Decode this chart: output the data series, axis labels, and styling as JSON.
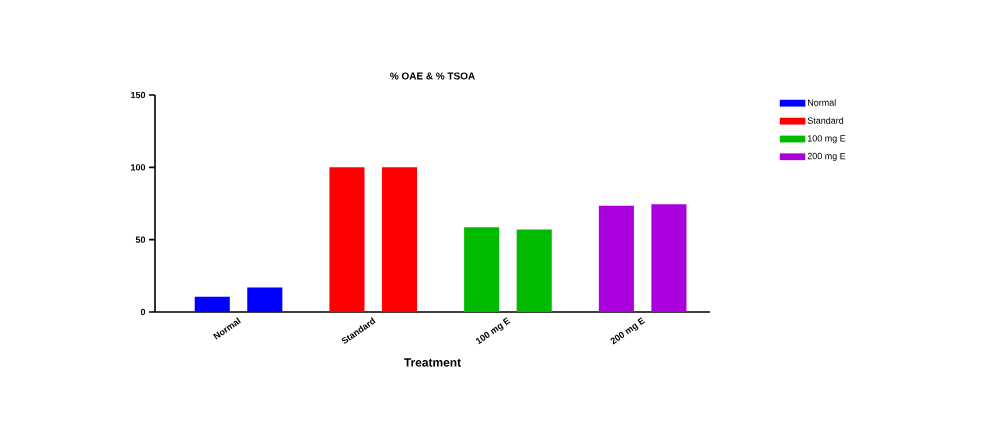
{
  "chart_data": {
    "type": "bar",
    "title": "% OAE & % TSOA",
    "xlabel": "Treatment",
    "categories": [
      "Normal",
      "Standard",
      "100 mg E",
      "200 mg E"
    ],
    "series": [
      {
        "name": "Normal",
        "color": "#0000ff",
        "values": [
          10.5,
          null,
          null,
          null
        ]
      },
      {
        "color": "#0000ff",
        "values": [
          17,
          null,
          null,
          null
        ]
      },
      {
        "name": "Standard",
        "color": "#ff0000",
        "values": [
          null,
          100,
          null,
          null
        ]
      },
      {
        "color": "#ff0000",
        "values": [
          null,
          100,
          null,
          null
        ]
      },
      {
        "name": "100 mg E",
        "color": "#00bb00",
        "values": [
          null,
          null,
          58.5,
          null
        ]
      },
      {
        "color": "#00bb00",
        "values": [
          null,
          null,
          57,
          null
        ]
      },
      {
        "name": "200 mg E",
        "color": "#aa00dd",
        "values": [
          null,
          null,
          null,
          73.5
        ]
      },
      {
        "color": "#aa00dd",
        "values": [
          null,
          null,
          null,
          74.5
        ]
      }
    ],
    "ylim": [
      0,
      150
    ],
    "yticks": [
      0,
      50,
      100,
      150
    ],
    "grid": false,
    "legend": "right"
  }
}
